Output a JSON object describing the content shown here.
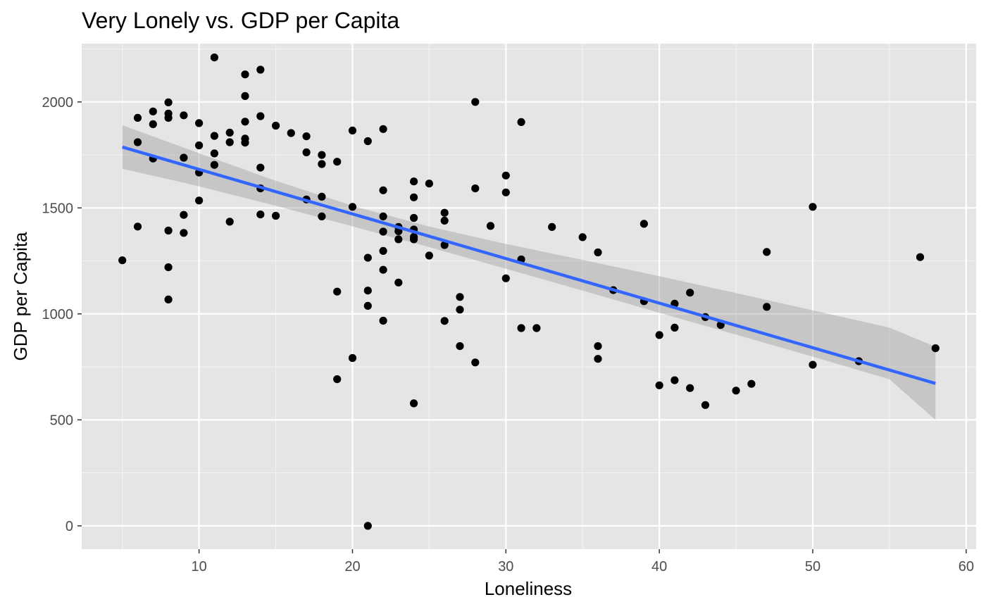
{
  "chart_data": {
    "type": "scatter",
    "title": "Very Lonely vs. GDP per Capita",
    "xlabel": "Loneliness",
    "ylabel": "GDP per Capita",
    "xlim": [
      2.35,
      60.65
    ],
    "ylim": [
      -110,
      2275
    ],
    "x_ticks": [
      10,
      20,
      30,
      40,
      50,
      60
    ],
    "y_ticks": [
      0,
      500,
      1000,
      1500,
      2000
    ],
    "x_tick_labels": [
      "10",
      "20",
      "30",
      "40",
      "50",
      "60"
    ],
    "y_tick_labels": [
      "0",
      "500",
      "1000",
      "1500",
      "2000"
    ],
    "grid": true,
    "legend": "none",
    "colors": {
      "panel": "#e5e5e5",
      "grid_major": "#ffffff",
      "grid_minor": "#f2f2f2",
      "points": "#000000",
      "fit_line": "#3366ff",
      "confidence_band": "#999999"
    },
    "points": [
      [
        5,
        1253
      ],
      [
        6,
        1925
      ],
      [
        6,
        1810
      ],
      [
        6,
        1412
      ],
      [
        7,
        1955
      ],
      [
        7,
        1895
      ],
      [
        7,
        1733
      ],
      [
        8,
        1998
      ],
      [
        8,
        1945
      ],
      [
        8,
        1925
      ],
      [
        8,
        1393
      ],
      [
        8,
        1220
      ],
      [
        8,
        1068
      ],
      [
        9,
        1937
      ],
      [
        9,
        1737
      ],
      [
        9,
        1467
      ],
      [
        9,
        1382
      ],
      [
        10,
        1900
      ],
      [
        10,
        1795
      ],
      [
        10,
        1667
      ],
      [
        10,
        1535
      ],
      [
        11,
        2210
      ],
      [
        11,
        1840
      ],
      [
        11,
        1757
      ],
      [
        11,
        1703
      ],
      [
        12,
        1855
      ],
      [
        12,
        1810
      ],
      [
        12,
        1435
      ],
      [
        13,
        2130
      ],
      [
        13,
        2028
      ],
      [
        13,
        1907
      ],
      [
        13,
        1827
      ],
      [
        13,
        1808
      ],
      [
        14,
        2152
      ],
      [
        14,
        1933
      ],
      [
        14,
        1690
      ],
      [
        14,
        1592
      ],
      [
        14,
        1469
      ],
      [
        15,
        1888
      ],
      [
        15,
        1463
      ],
      [
        16,
        1853
      ],
      [
        17,
        1838
      ],
      [
        17,
        1762
      ],
      [
        17,
        1540
      ],
      [
        18,
        1750
      ],
      [
        18,
        1707
      ],
      [
        18,
        1553
      ],
      [
        18,
        1460
      ],
      [
        19,
        1718
      ],
      [
        19,
        1105
      ],
      [
        19,
        692
      ],
      [
        20,
        1865
      ],
      [
        20,
        1505
      ],
      [
        20,
        792
      ],
      [
        21,
        1815
      ],
      [
        21,
        1265
      ],
      [
        21,
        1110
      ],
      [
        21,
        1038
      ],
      [
        21,
        0
      ],
      [
        22,
        1872
      ],
      [
        22,
        1583
      ],
      [
        22,
        1460
      ],
      [
        22,
        1388
      ],
      [
        22,
        1297
      ],
      [
        22,
        1208
      ],
      [
        22,
        968
      ],
      [
        23,
        1410
      ],
      [
        23,
        1390
      ],
      [
        23,
        1352
      ],
      [
        23,
        1148
      ],
      [
        24,
        1625
      ],
      [
        24,
        1550
      ],
      [
        24,
        1453
      ],
      [
        24,
        1398
      ],
      [
        24,
        1363
      ],
      [
        24,
        1352
      ],
      [
        24,
        578
      ],
      [
        25,
        1615
      ],
      [
        25,
        1275
      ],
      [
        26,
        1477
      ],
      [
        26,
        1440
      ],
      [
        26,
        1325
      ],
      [
        26,
        967
      ],
      [
        27,
        1080
      ],
      [
        27,
        1020
      ],
      [
        27,
        848
      ],
      [
        28,
        2000
      ],
      [
        28,
        1592
      ],
      [
        28,
        771
      ],
      [
        29,
        1415
      ],
      [
        30,
        1653
      ],
      [
        30,
        1573
      ],
      [
        30,
        1168
      ],
      [
        31,
        1905
      ],
      [
        31,
        1257
      ],
      [
        31,
        933
      ],
      [
        32,
        933
      ],
      [
        33,
        1410
      ],
      [
        35,
        1362
      ],
      [
        36,
        1290
      ],
      [
        36,
        848
      ],
      [
        36,
        788
      ],
      [
        37,
        1112
      ],
      [
        39,
        1425
      ],
      [
        39,
        1060
      ],
      [
        40,
        900
      ],
      [
        40,
        663
      ],
      [
        41,
        1048
      ],
      [
        41,
        935
      ],
      [
        41,
        687
      ],
      [
        42,
        1100
      ],
      [
        42,
        650
      ],
      [
        43,
        985
      ],
      [
        43,
        570
      ],
      [
        44,
        948
      ],
      [
        45,
        638
      ],
      [
        46,
        670
      ],
      [
        47,
        1292
      ],
      [
        47,
        1033
      ],
      [
        50,
        1505
      ],
      [
        50,
        760
      ],
      [
        53,
        777
      ],
      [
        57,
        1268
      ],
      [
        58,
        838
      ]
    ],
    "fit_line": {
      "x": [
        5,
        58
      ],
      "y": [
        1787,
        672
      ]
    },
    "confidence_band": {
      "x": [
        5,
        10,
        15,
        20,
        25,
        30,
        35,
        40,
        45,
        50,
        55,
        58
      ],
      "upper": [
        1890,
        1758,
        1628,
        1510,
        1412,
        1330,
        1255,
        1178,
        1098,
        1017,
        935,
        845
      ],
      "lower": [
        1685,
        1602,
        1510,
        1413,
        1315,
        1213,
        1110,
        1005,
        902,
        798,
        692,
        500
      ]
    }
  }
}
